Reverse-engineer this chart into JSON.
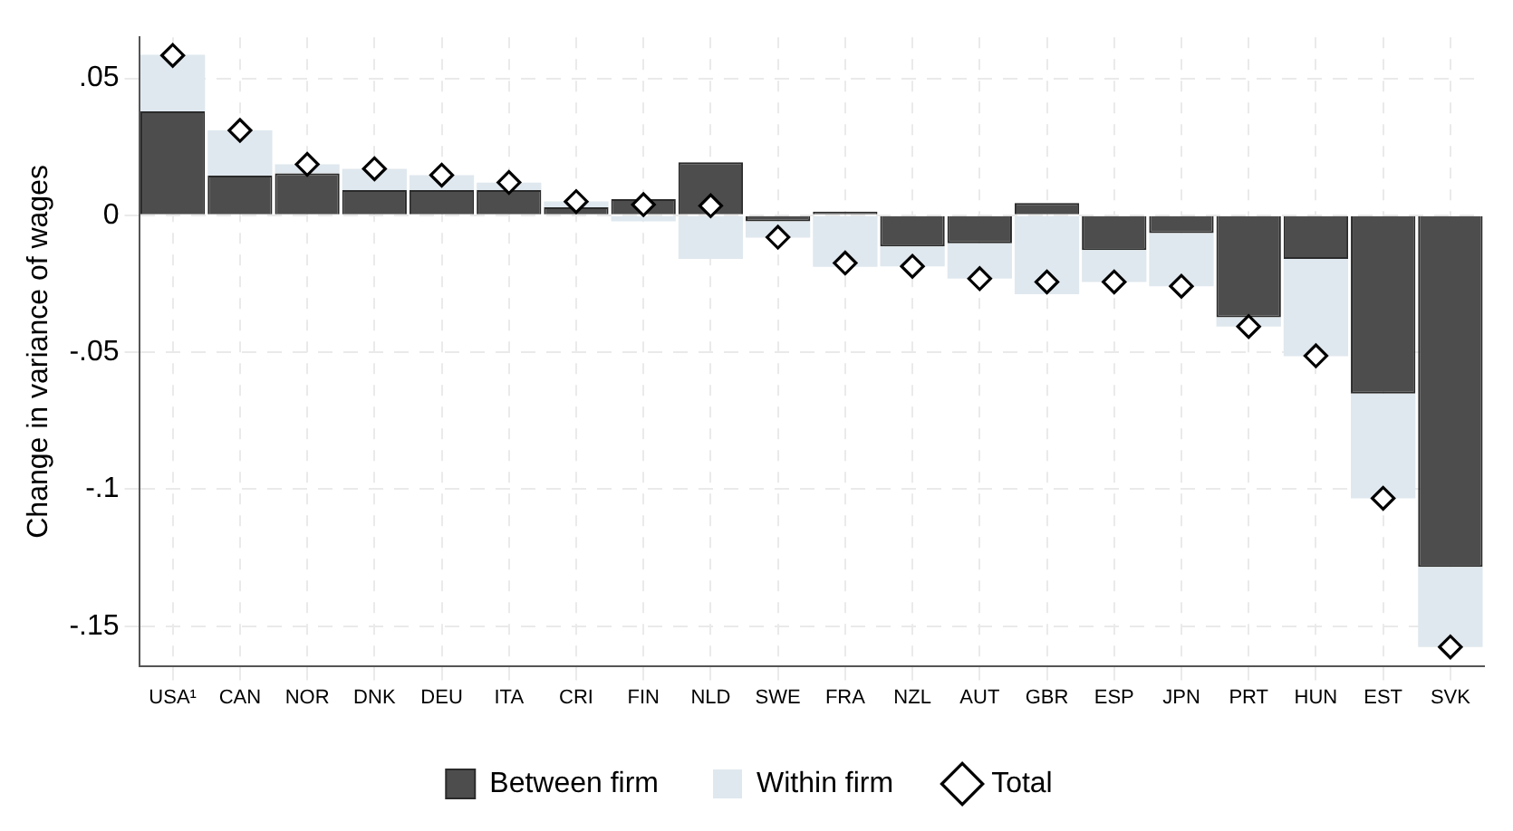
{
  "chart_data": {
    "type": "bar",
    "stacked": true,
    "ylabel": "Change in variance of wages",
    "categories": [
      "USA¹",
      "CAN",
      "NOR",
      "DNK",
      "DEU",
      "ITA",
      "CRI",
      "FIN",
      "NLD",
      "SWE",
      "FRA",
      "NZL",
      "AUT",
      "GBR",
      "ESP",
      "JPN",
      "PRT",
      "HUN",
      "EST",
      "SVK"
    ],
    "series": [
      {
        "name": "Between firm",
        "color": "#4d4d4d",
        "values": [
          0.038,
          0.0145,
          0.0153,
          0.0092,
          0.0092,
          0.0092,
          0.0029,
          0.0059,
          0.0194,
          -0.0022,
          0.0014,
          -0.0114,
          -0.0102,
          0.0045,
          -0.0127,
          -0.0065,
          -0.0372,
          -0.0159,
          -0.0651,
          -0.1284
        ]
      },
      {
        "name": "Within firm",
        "color": "#dfe8ee",
        "values": [
          0.0206,
          0.0165,
          0.0033,
          0.0078,
          0.0055,
          0.0027,
          0.0022,
          -0.0022,
          -0.0159,
          -0.0059,
          -0.0188,
          -0.0072,
          -0.0129,
          -0.0288,
          -0.0116,
          -0.0194,
          -0.0034,
          -0.0355,
          -0.0382,
          -0.0292
        ]
      },
      {
        "name": "Total",
        "type": "scatter",
        "color": "#ffffff",
        "marker": "diamond",
        "x": [
          "USA¹",
          "CAN",
          "NOR",
          "DNK",
          "DEU",
          "ITA",
          "CRI",
          "FIN",
          "NLD",
          "SWE",
          "FRA",
          "NZL",
          "AUT",
          "GBR",
          "ESP",
          "JPN",
          "PRT",
          "HUN",
          "EST",
          "SVK"
        ],
        "values": [
          0.0584,
          0.031,
          0.0186,
          0.017,
          0.0147,
          0.012,
          0.005,
          0.0039,
          0.0035,
          -0.008,
          -0.0174,
          -0.0186,
          -0.0231,
          -0.0243,
          -0.0243,
          -0.0259,
          -0.0406,
          -0.0513,
          -0.1033,
          -0.1576
        ]
      }
    ],
    "ylim": [
      -0.1645,
      0.065
    ],
    "yticks": [
      {
        "value": -0.15,
        "label": "-.15"
      },
      {
        "value": -0.1,
        "label": "-.1"
      },
      {
        "value": -0.05,
        "label": "-.05"
      },
      {
        "value": 0,
        "label": "0"
      },
      {
        "value": 0.05,
        "label": ".05"
      }
    ],
    "grid": true,
    "legend": "bottom"
  }
}
